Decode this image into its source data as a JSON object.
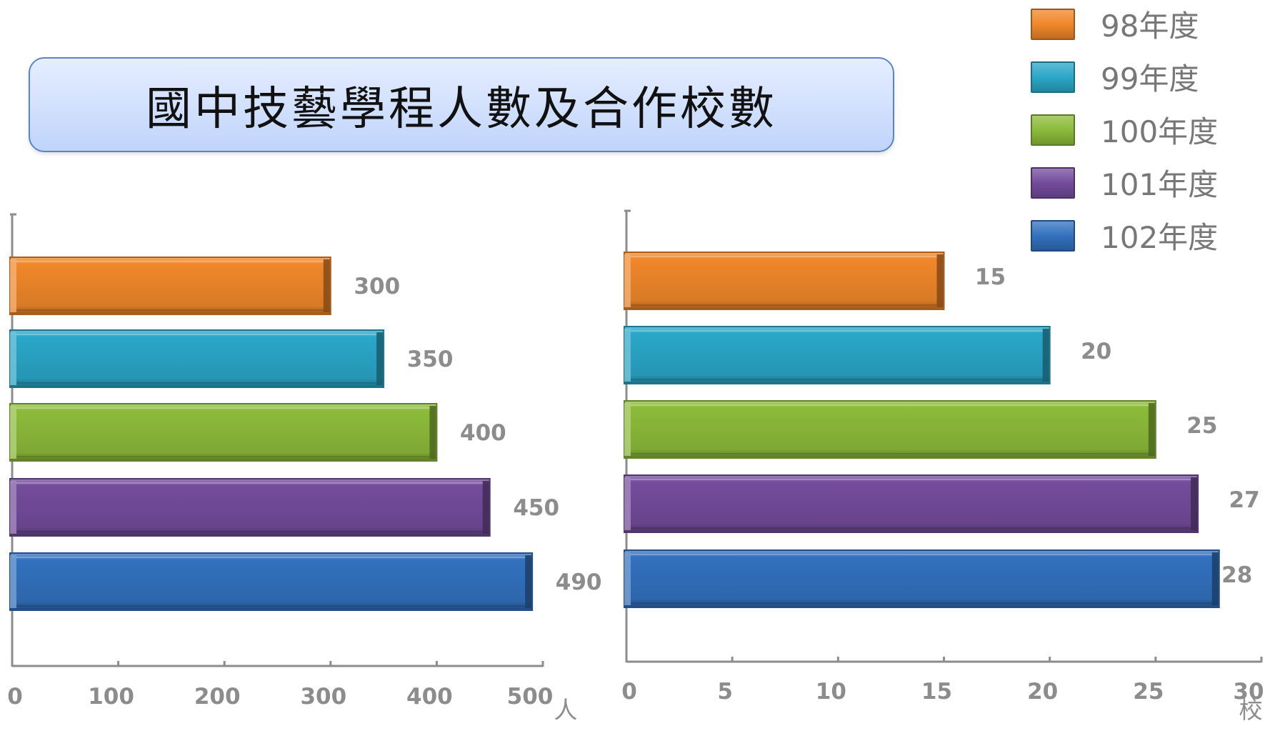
{
  "title": "國中技藝學程人數及合作校數",
  "legend": [
    {
      "label": "98年度",
      "color": "#f0872a"
    },
    {
      "label": "99年度",
      "color": "#2aa7c8"
    },
    {
      "label": "100年度",
      "color": "#8cbb3a"
    },
    {
      "label": "101年度",
      "color": "#744c9c"
    },
    {
      "label": "102年度",
      "color": "#3271be"
    }
  ],
  "chart_data": [
    {
      "type": "bar",
      "orientation": "horizontal",
      "categories": [
        "98年度",
        "99年度",
        "100年度",
        "101年度",
        "102年度"
      ],
      "values": [
        300,
        350,
        400,
        450,
        490
      ],
      "data_labels": [
        "300",
        "350",
        "400",
        "450",
        "490"
      ],
      "xlim": [
        0,
        500
      ],
      "xticks": [
        "0",
        "100",
        "200",
        "300",
        "400",
        "500"
      ],
      "xlabel": "人",
      "grid": false
    },
    {
      "type": "bar",
      "orientation": "horizontal",
      "categories": [
        "98年度",
        "99年度",
        "100年度",
        "101年度",
        "102年度"
      ],
      "values": [
        15,
        20,
        25,
        27,
        28
      ],
      "data_labels": [
        "15",
        "20",
        "25",
        "27",
        "28"
      ],
      "xlim": [
        0,
        30
      ],
      "xticks": [
        "0",
        "5",
        "10",
        "15",
        "20",
        "25",
        "30"
      ],
      "xlabel": "校",
      "grid": false
    }
  ]
}
